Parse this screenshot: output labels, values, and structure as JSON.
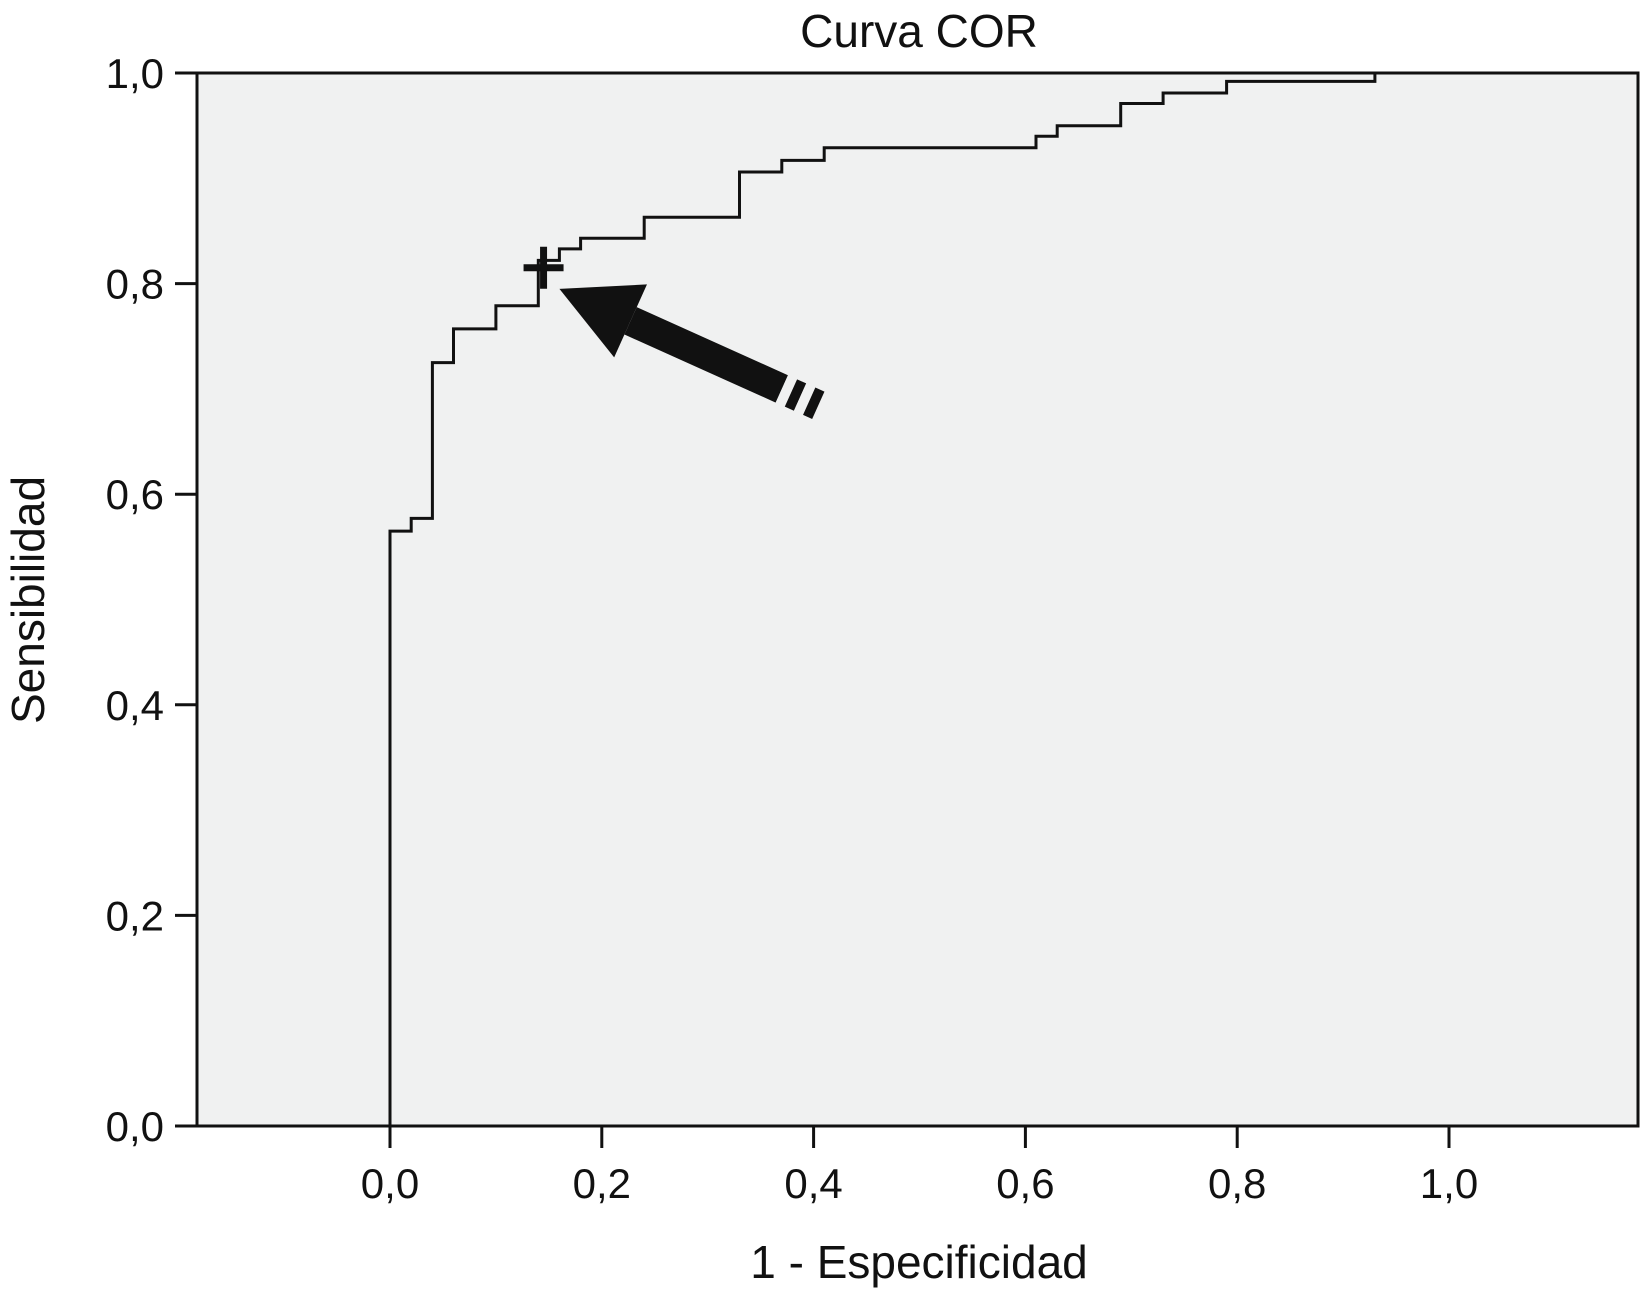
{
  "chart_data": {
    "type": "line",
    "title": "Curva COR",
    "xlabel": "1 - Especificidad",
    "ylabel": "Sensibilidad",
    "xlim": [
      -0.18,
      1.17
    ],
    "ylim": [
      0.0,
      1.0
    ],
    "xticks": [
      "0,0",
      "0,2",
      "0,4",
      "0,6",
      "0,8",
      "1,0"
    ],
    "yticks": [
      "0,0",
      "0,2",
      "0,4",
      "0,6",
      "0,8",
      "1,0"
    ],
    "grid": false,
    "background_color": "#f0f1f1",
    "line_color": "#111111",
    "series": [
      {
        "points": [
          [
            0.0,
            0.0
          ],
          [
            0.0,
            0.565
          ],
          [
            0.02,
            0.565
          ],
          [
            0.02,
            0.577
          ],
          [
            0.04,
            0.577
          ],
          [
            0.04,
            0.725
          ],
          [
            0.06,
            0.725
          ],
          [
            0.06,
            0.757
          ],
          [
            0.1,
            0.757
          ],
          [
            0.1,
            0.779
          ],
          [
            0.14,
            0.779
          ],
          [
            0.14,
            0.822
          ],
          [
            0.16,
            0.822
          ],
          [
            0.16,
            0.833
          ],
          [
            0.18,
            0.833
          ],
          [
            0.18,
            0.843
          ],
          [
            0.24,
            0.843
          ],
          [
            0.24,
            0.863
          ],
          [
            0.33,
            0.863
          ],
          [
            0.33,
            0.906
          ],
          [
            0.37,
            0.906
          ],
          [
            0.37,
            0.917
          ],
          [
            0.41,
            0.917
          ],
          [
            0.41,
            0.929
          ],
          [
            0.61,
            0.929
          ],
          [
            0.61,
            0.94
          ],
          [
            0.63,
            0.94
          ],
          [
            0.63,
            0.95
          ],
          [
            0.69,
            0.95
          ],
          [
            0.69,
            0.971
          ],
          [
            0.73,
            0.971
          ],
          [
            0.73,
            0.981
          ],
          [
            0.79,
            0.981
          ],
          [
            0.79,
            0.992
          ],
          [
            0.93,
            0.992
          ],
          [
            0.93,
            1.0
          ]
        ]
      }
    ],
    "annotations": [
      {
        "kind": "cutoff-marker",
        "x": 0.145,
        "y": 0.815
      },
      {
        "kind": "arrow",
        "from": [
          0.37,
          0.7
        ],
        "to": [
          0.16,
          0.795
        ]
      }
    ]
  }
}
